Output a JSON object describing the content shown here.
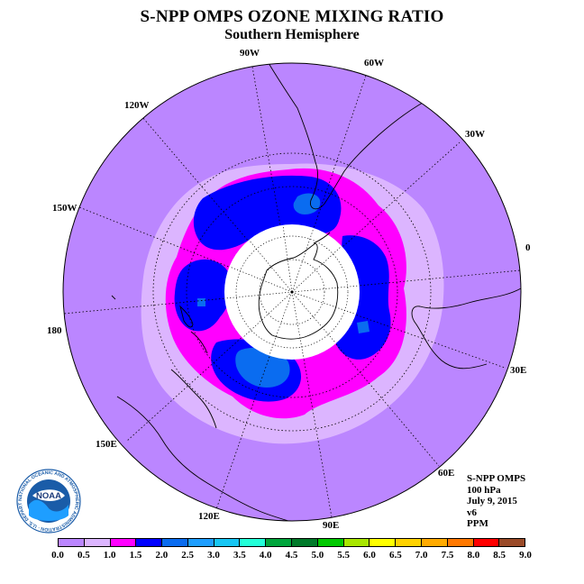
{
  "header": {
    "title": "S-NPP OMPS OZONE MIXING RATIO",
    "subtitle": "Southern Hemisphere"
  },
  "map": {
    "projection": "south polar stereographic",
    "longitude_labels": [
      "90W",
      "60W",
      "30W",
      "0",
      "30E",
      "60E",
      "90E",
      "120E",
      "150E",
      "180",
      "150W",
      "120W"
    ],
    "regions": [
      {
        "name": "outer",
        "range_ppm": [
          0.0,
          0.5
        ]
      },
      {
        "name": "ring",
        "range_ppm": [
          0.5,
          1.0
        ]
      },
      {
        "name": "vortex-edge",
        "range_ppm": [
          1.0,
          1.5
        ]
      },
      {
        "name": "vortex-core",
        "range_ppm": [
          1.5,
          2.0
        ]
      },
      {
        "name": "local-maxima",
        "range_ppm": [
          2.0,
          2.5
        ]
      }
    ],
    "no_data_region": "polar night"
  },
  "info": {
    "instrument": "S-NPP OMPS",
    "level": "100 hPa",
    "date": "July 9, 2015",
    "version": "v6",
    "units": "PPM"
  },
  "colorbar": {
    "ticks": [
      "0.0",
      "0.5",
      "1.0",
      "1.5",
      "2.0",
      "2.5",
      "3.0",
      "3.5",
      "4.0",
      "4.5",
      "5.0",
      "5.5",
      "6.0",
      "6.5",
      "7.0",
      "7.5",
      "8.0",
      "8.5",
      "9.0"
    ],
    "colors": [
      "#bb86ff",
      "#dcb5ff",
      "#ff00ff",
      "#0000ff",
      "#0a6cf0",
      "#1e9eff",
      "#17c6f4",
      "#23ffd8",
      "#00a53c",
      "#007a2a",
      "#00c800",
      "#a8e600",
      "#ffff00",
      "#ffd200",
      "#ffaa00",
      "#ff7800",
      "#ff0000",
      "#9a4a28"
    ]
  },
  "logo": {
    "text": "NOAA",
    "ring_text": "NATIONAL OCEANIC AND ATMOSPHERIC ADMINISTRATION · U.S. DEPARTMENT OF COMMERCE"
  }
}
